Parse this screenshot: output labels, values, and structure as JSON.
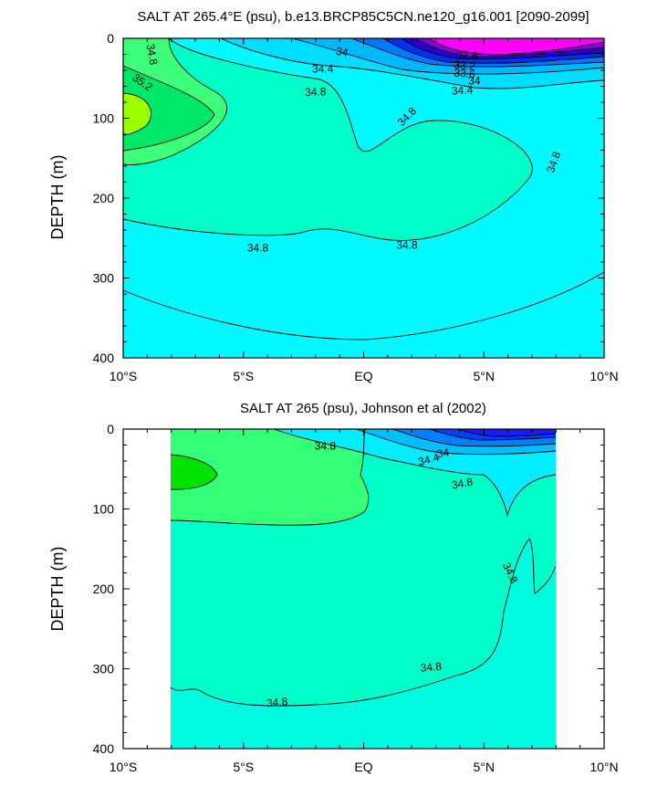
{
  "chart_data": [
    {
      "type": "contour",
      "title": "SALT AT 265.4°E (psu), b.e13.BRCP85C5CN.ne120_g16.001 [2090-2099]",
      "ylabel": "DEPTH (m)",
      "xlabel": "",
      "x_ticks": [
        "10°S",
        "5°S",
        "EQ",
        "5°N",
        "10°N"
      ],
      "y_ticks": [
        "0",
        "100",
        "200",
        "300",
        "400"
      ],
      "xlim": [
        -10,
        10
      ],
      "ylim": [
        400,
        0
      ],
      "data_extent": [
        -10,
        10
      ],
      "contour_labels": [
        {
          "text": "34.8",
          "lat": -8.8,
          "depth": 20,
          "angle": 80
        },
        {
          "text": "35.2",
          "lat": -9.2,
          "depth": 55,
          "angle": 35
        },
        {
          "text": "34",
          "lat": -0.9,
          "depth": 17,
          "angle": 10
        },
        {
          "text": "34.4",
          "lat": -1.7,
          "depth": 38,
          "angle": 0
        },
        {
          "text": "34.8",
          "lat": -2.0,
          "depth": 67,
          "angle": -2
        },
        {
          "text": "34.8",
          "lat": 1.8,
          "depth": 98,
          "angle": -45
        },
        {
          "text": "32.8",
          "lat": 4.3,
          "depth": 21,
          "angle": 5
        },
        {
          "text": "33.2",
          "lat": 4.2,
          "depth": 34,
          "angle": 5
        },
        {
          "text": "33.6",
          "lat": 4.2,
          "depth": 44,
          "angle": 5
        },
        {
          "text": "34",
          "lat": 4.6,
          "depth": 53,
          "angle": 0
        },
        {
          "text": "34.4",
          "lat": 4.1,
          "depth": 65,
          "angle": -3
        },
        {
          "text": "34.8",
          "lat": 7.9,
          "depth": 155,
          "angle": -70
        },
        {
          "text": "34.8",
          "lat": -4.4,
          "depth": 262,
          "angle": 0
        },
        {
          "text": "34.8",
          "lat": 1.8,
          "depth": 259,
          "angle": 0
        }
      ]
    },
    {
      "type": "contour",
      "title": "SALT AT 265 (psu), Johnson et al (2002)",
      "ylabel": "DEPTH (m)",
      "xlabel": "",
      "x_ticks": [
        "10°S",
        "5°S",
        "EQ",
        "5°N",
        "10°N"
      ],
      "y_ticks": [
        "0",
        "100",
        "200",
        "300",
        "400"
      ],
      "xlim": [
        -10,
        10
      ],
      "ylim": [
        400,
        0
      ],
      "data_extent": [
        -8,
        8
      ],
      "contour_labels": [
        {
          "text": "34.8",
          "lat": -1.6,
          "depth": 21,
          "angle": 0
        },
        {
          "text": "34",
          "lat": 3.3,
          "depth": 30,
          "angle": -10
        },
        {
          "text": "34.4",
          "lat": 2.7,
          "depth": 38,
          "angle": -15
        },
        {
          "text": "34.8",
          "lat": 4.1,
          "depth": 68,
          "angle": -10
        },
        {
          "text": "34.8",
          "lat": 6.1,
          "depth": 180,
          "angle": 65
        },
        {
          "text": "34.8",
          "lat": 2.8,
          "depth": 298,
          "angle": -5
        },
        {
          "text": "34.8",
          "lat": -3.6,
          "depth": 342,
          "angle": -5
        }
      ]
    }
  ]
}
